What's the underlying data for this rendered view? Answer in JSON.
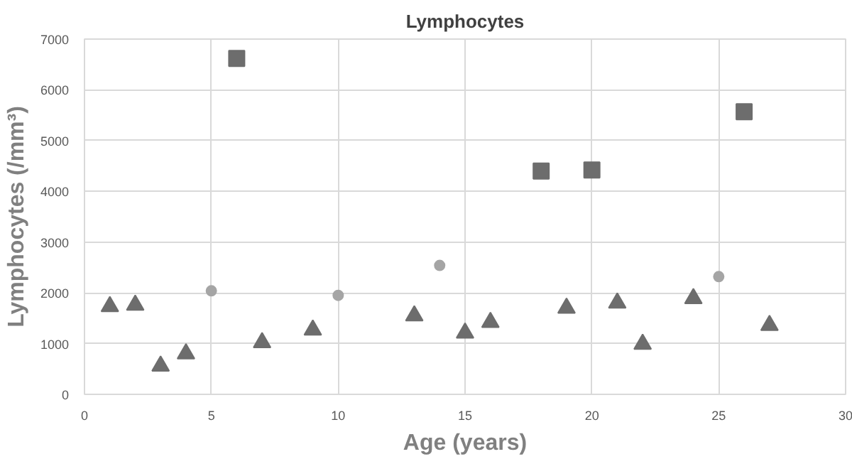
{
  "chart_data": {
    "type": "scatter",
    "title": "Lymphocytes",
    "xlabel": "Age (years)",
    "ylabel": "Lymphocytes (/mm³)",
    "xlim": [
      0,
      30
    ],
    "xticks": [
      0,
      5,
      10,
      15,
      20,
      25,
      30
    ],
    "ylim": [
      0,
      7000
    ],
    "yticks": [
      0,
      1000,
      2000,
      3000,
      4000,
      5000,
      6000,
      7000
    ],
    "grid": true,
    "series": [
      {
        "color": "#6d6d6d",
        "marker": "triangle",
        "x": [
          1,
          2,
          3,
          4,
          7,
          9,
          13,
          15,
          16,
          19,
          21,
          22,
          24,
          27
        ],
        "values": [
          1730,
          1760,
          560,
          800,
          1020,
          1270,
          1550,
          1210,
          1420,
          1700,
          1800,
          990,
          1890,
          1360
        ]
      },
      {
        "color": "#6d6d6d",
        "marker": "square",
        "x": [
          6,
          18,
          20,
          26
        ],
        "values": [
          6620,
          4400,
          4420,
          5570
        ]
      },
      {
        "color": "#a5a5a5",
        "marker": "circle",
        "x": [
          5,
          10,
          14,
          25
        ],
        "values": [
          2040,
          1950,
          2540,
          2320
        ]
      }
    ]
  }
}
